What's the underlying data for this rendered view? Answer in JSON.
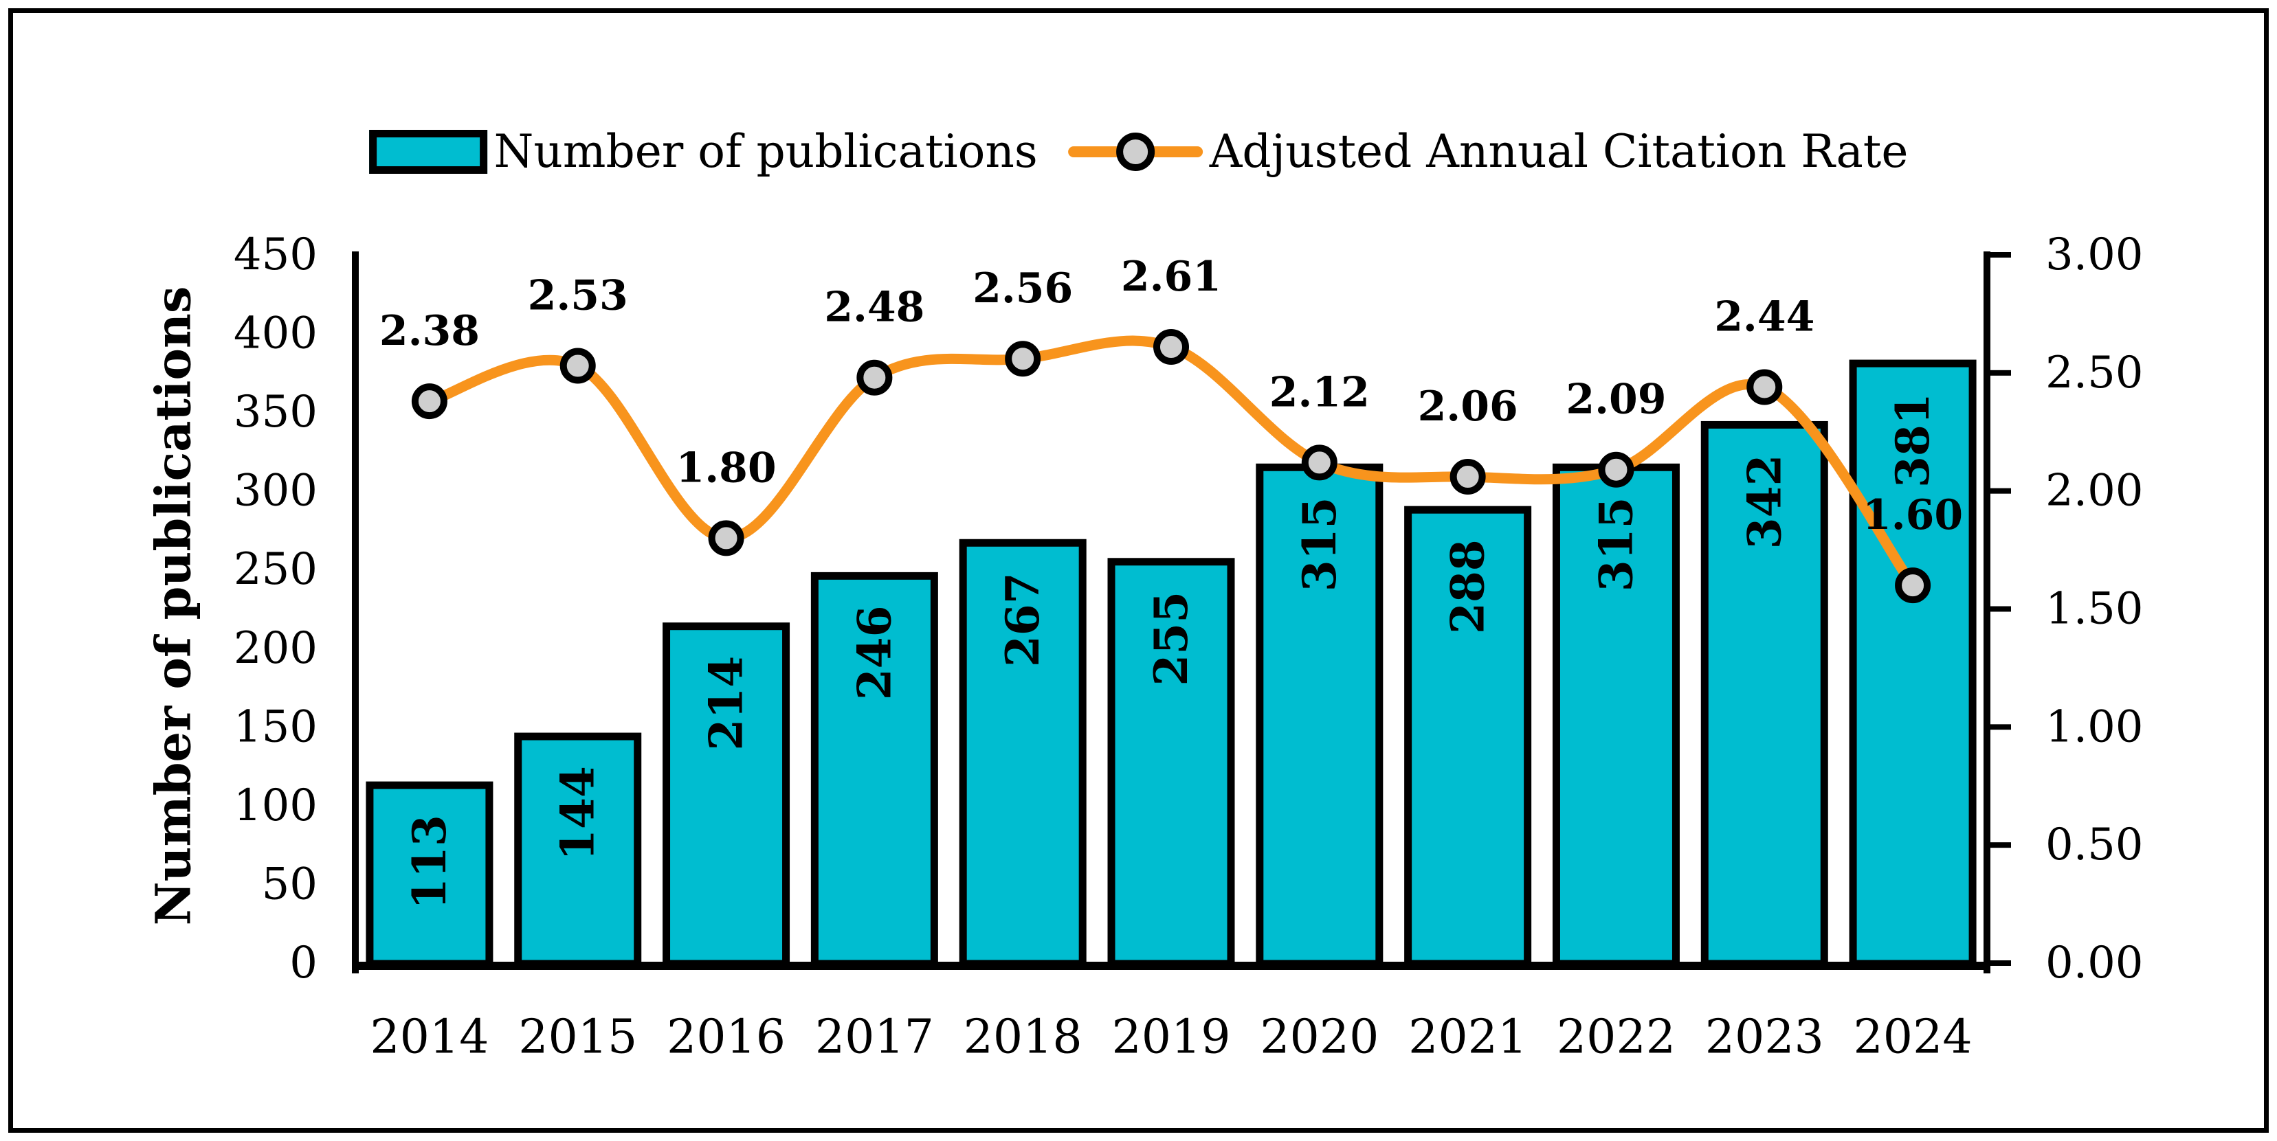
{
  "legend": {
    "items": [
      {
        "label": "Number of publications",
        "swatch": "bar"
      },
      {
        "label": "Adjusted Annual Citation Rate",
        "swatch": "line-marker"
      }
    ]
  },
  "chart_data": {
    "type": "bar+line combo",
    "title": "",
    "categories": [
      "2014",
      "2015",
      "2016",
      "2017",
      "2018",
      "2019",
      "2020",
      "2021",
      "2022",
      "2023",
      "2024"
    ],
    "series": [
      {
        "name": "Number of publications",
        "type": "bar",
        "axis": "left",
        "values": [
          113,
          144,
          214,
          246,
          267,
          255,
          315,
          288,
          315,
          342,
          381
        ],
        "data_labels": [
          "113",
          "144",
          "214",
          "246",
          "267",
          "255",
          "315",
          "288",
          "315",
          "342",
          "381"
        ]
      },
      {
        "name": "Adjusted Annual Citation Rate",
        "type": "line",
        "axis": "right",
        "smooth": true,
        "values": [
          2.38,
          2.53,
          1.8,
          2.48,
          2.56,
          2.61,
          2.12,
          2.06,
          2.09,
          2.44,
          1.6
        ],
        "data_labels": [
          "2.38",
          "2.53",
          "1.80",
          "2.48",
          "2.56",
          "2.61",
          "2.12",
          "2.06",
          "2.09",
          "2.44",
          "1.60"
        ]
      }
    ],
    "left_axis": {
      "label": "Number of publications",
      "min": 0,
      "max": 450,
      "step": 50,
      "tick_labels": [
        "0",
        "50",
        "100",
        "150",
        "200",
        "250",
        "300",
        "350",
        "400",
        "450"
      ]
    },
    "right_axis": {
      "label": "",
      "min": 0,
      "max": 3,
      "step": 0.5,
      "tick_labels": [
        "0.00",
        "0.50",
        "1.00",
        "1.50",
        "2.00",
        "2.50",
        "3.00"
      ]
    },
    "grid": false,
    "legend_position": "top"
  },
  "colors": {
    "bar_fill": "#00BDD0",
    "bar_stroke": "#000000",
    "line": "#F8941D",
    "marker_fill": "#CFCFCF",
    "marker_stroke": "#000000",
    "axis": "#000000",
    "text": "#000000",
    "background": "#FFFFFF"
  }
}
